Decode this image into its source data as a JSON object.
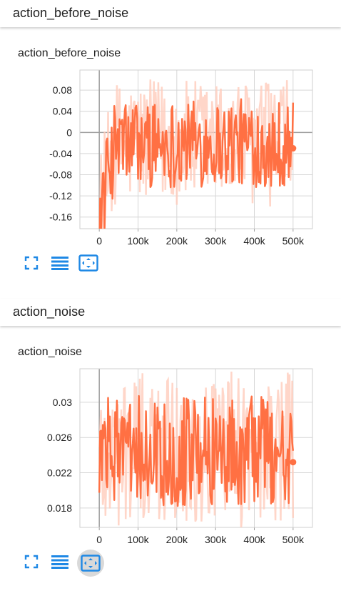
{
  "sections": [
    {
      "header": "action_before_noise",
      "card_title": "action_before_noise",
      "chart_data": {
        "type": "line",
        "title": "action_before_noise",
        "xlabel": "",
        "ylabel": "",
        "xlim": [
          -50000,
          550000
        ],
        "ylim": [
          -0.182,
          0.118
        ],
        "x_ticks": [
          0,
          100000,
          200000,
          300000,
          400000,
          500000
        ],
        "x_tick_labels": [
          "0",
          "100k",
          "200k",
          "300k",
          "400k",
          "500k"
        ],
        "y_ticks": [
          0.08,
          0.04,
          0,
          -0.04,
          -0.08,
          -0.12,
          -0.16
        ],
        "y_tick_labels": [
          "0.08",
          "0.04",
          "0",
          "-0.04",
          "-0.08",
          "-0.12",
          "-0.16"
        ],
        "grid": true,
        "series": [
          {
            "color": "#ff7043",
            "raw_color": "#ffccbc",
            "x_start": 0,
            "x_end": 500000,
            "y_center": -0.02,
            "y_spread": 0.06,
            "raw_spread": 0.12,
            "initial_dip": -0.17,
            "last_value": -0.03
          }
        ]
      },
      "toolbar": [
        "fullscreen-icon",
        "data-list-icon",
        "fit-domain-icon"
      ],
      "active_tool": -1
    },
    {
      "header": "action_noise",
      "card_title": "action_noise",
      "chart_data": {
        "type": "line",
        "title": "action_noise",
        "xlabel": "",
        "ylabel": "",
        "xlim": [
          -50000,
          550000
        ],
        "ylim": [
          0.0158,
          0.0338
        ],
        "x_ticks": [
          0,
          100000,
          200000,
          300000,
          400000,
          500000
        ],
        "x_tick_labels": [
          "0",
          "100k",
          "200k",
          "300k",
          "400k",
          "500k"
        ],
        "y_ticks": [
          0.03,
          0.026,
          0.022,
          0.018
        ],
        "y_tick_labels": [
          "0.03",
          "0.026",
          "0.022",
          "0.018"
        ],
        "grid": true,
        "series": [
          {
            "color": "#ff7043",
            "raw_color": "#ffccbc",
            "x_start": 0,
            "x_end": 500000,
            "y_center": 0.0245,
            "y_spread": 0.0045,
            "raw_spread": 0.009,
            "initial_dip": 0.024,
            "last_value": 0.0232
          }
        ]
      },
      "toolbar": [
        "fullscreen-icon",
        "data-list-icon",
        "fit-domain-icon"
      ],
      "active_tool": 2
    }
  ]
}
